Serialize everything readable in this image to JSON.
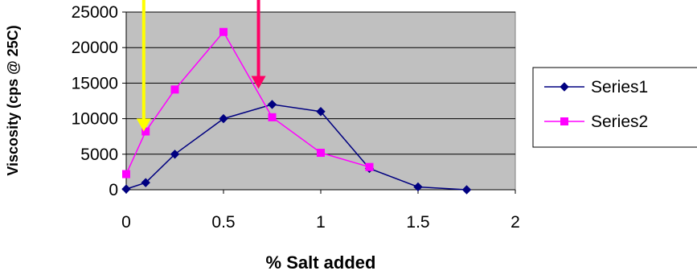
{
  "chart_data": {
    "type": "line",
    "title": "",
    "xlabel": "% Salt added",
    "ylabel": "Viscosity (cps @ 25C)",
    "xlim": [
      0,
      2
    ],
    "ylim": [
      0,
      25000
    ],
    "xticks": [
      "0",
      "0.5",
      "1",
      "1.5",
      "2"
    ],
    "yticks": [
      "0",
      "5000",
      "10000",
      "15000",
      "20000",
      "25000"
    ],
    "grid": "horizontal",
    "legend_position": "right",
    "plot_background": "#c0c0c0",
    "series": [
      {
        "name": "Series1",
        "color": "#000080",
        "marker": "diamond",
        "x": [
          0,
          0.1,
          0.25,
          0.5,
          0.75,
          1.0,
          1.25,
          1.5,
          1.75
        ],
        "y": [
          100,
          1000,
          5000,
          10000,
          12000,
          11000,
          3000,
          400,
          0
        ]
      },
      {
        "name": "Series2",
        "color": "#ff00ff",
        "marker": "square",
        "x": [
          0,
          0.1,
          0.25,
          0.5,
          0.75,
          1.0,
          1.25
        ],
        "y": [
          2200,
          8200,
          14100,
          22200,
          10200,
          5200,
          3200
        ]
      }
    ],
    "annotations": [
      {
        "type": "arrow",
        "color": "#ffff00",
        "x": 0.09,
        "y_tip": 8200,
        "direction": "down"
      },
      {
        "type": "arrow",
        "color": "#ff0066",
        "x": 0.68,
        "y_tip": 14200,
        "direction": "down"
      }
    ]
  }
}
